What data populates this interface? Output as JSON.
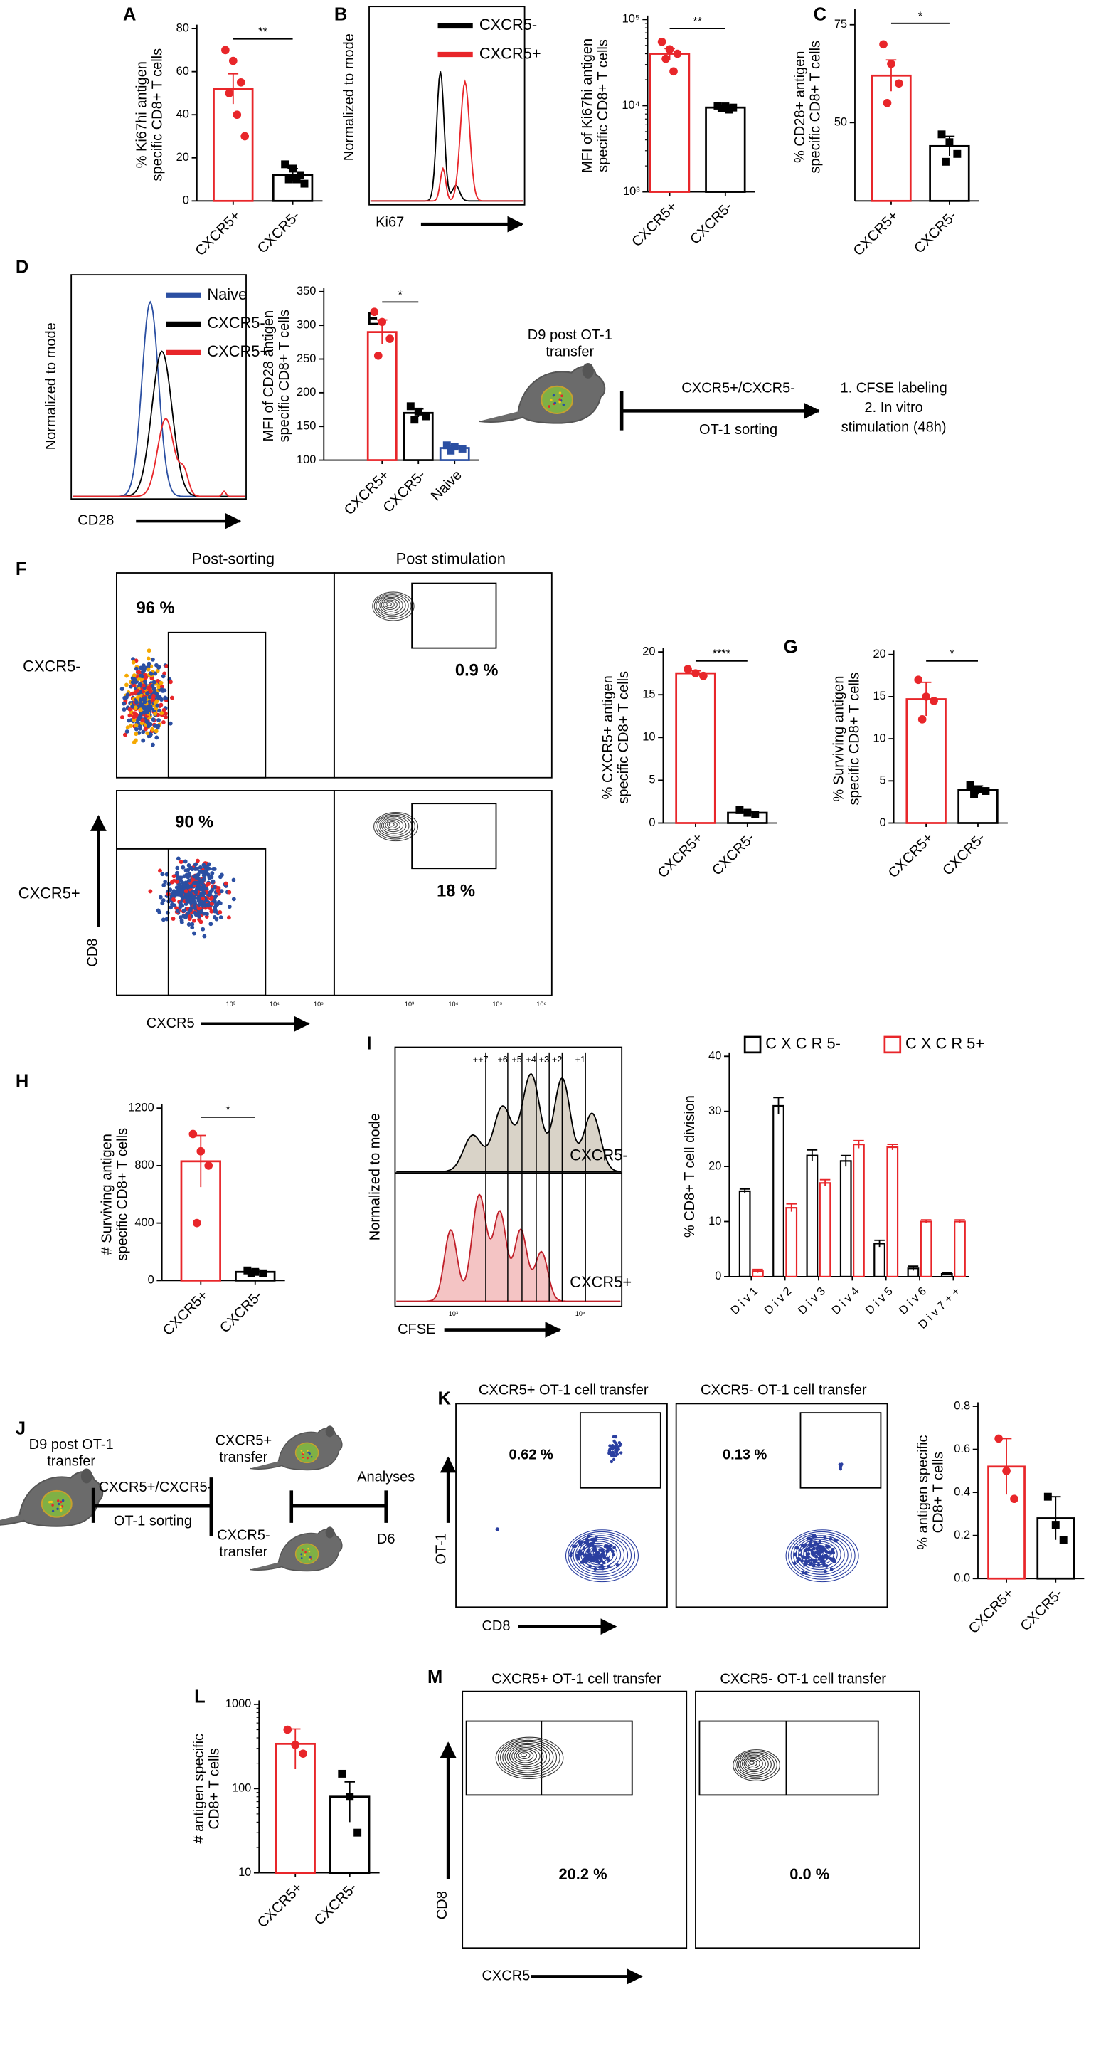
{
  "chart_data": [
    {
      "type": "bar",
      "ylabel": [
        "% Ki67hi antigen",
        "specific CD8+ T cells"
      ],
      "categories": [
        "CXCR5+",
        "CXCR5-"
      ],
      "values": [
        52,
        12
      ],
      "errors": [
        7,
        3
      ],
      "points": [
        [
          70,
          65,
          55,
          50,
          40,
          30
        ],
        [
          17,
          15,
          12,
          10,
          10,
          8
        ]
      ],
      "colors": [
        "#e8262a",
        "#000000"
      ],
      "ylim": [
        0,
        80
      ],
      "yticks": [
        0,
        20,
        40,
        60,
        80
      ],
      "significance": "**"
    },
    {
      "type": "bar",
      "ylabel": [
        "MFI of Ki67hi  antigen",
        "specific CD8+ T cells"
      ],
      "categories": [
        "CXCR5+",
        "CXCR5-"
      ],
      "values": [
        40000,
        9500
      ],
      "errors": [
        6000,
        400
      ],
      "points": [
        [
          55000,
          45000,
          40000,
          35000,
          25000
        ],
        [
          10000,
          9800,
          9500,
          9300,
          9000
        ]
      ],
      "colors": [
        "#e8262a",
        "#000000"
      ],
      "log": true,
      "ylim": [
        1000,
        100000
      ],
      "yticks": [
        {
          "value": 1000,
          "label": "10³"
        },
        {
          "value": 10000,
          "label": "10⁴"
        },
        {
          "value": 100000,
          "label": "10⁵"
        }
      ],
      "significance": "**"
    },
    {
      "type": "bar",
      "ylabel": [
        "% CD28+ antigen",
        "specific CD8+ T cells"
      ],
      "categories": [
        "CXCR5+",
        "CXCR5-"
      ],
      "values": [
        62,
        44
      ],
      "errors": [
        4,
        2.5
      ],
      "points": [
        [
          70,
          65,
          60,
          55
        ],
        [
          47,
          45,
          42,
          40
        ]
      ],
      "colors": [
        "#e8262a",
        "#000000"
      ],
      "ylim": [
        30,
        78
      ],
      "yticks": [
        50,
        75
      ],
      "significance": "*"
    },
    {
      "type": "bar",
      "ylabel": [
        "MFI of CD28 antigen",
        "specific CD8+ T cells"
      ],
      "categories": [
        "CXCR5+",
        "CXCR5-",
        "Naive"
      ],
      "values": [
        290,
        170,
        118
      ],
      "errors": [
        18,
        6,
        3
      ],
      "points": [
        [
          320,
          305,
          280,
          255
        ],
        [
          180,
          172,
          165,
          160
        ],
        [
          122,
          120,
          117,
          114
        ]
      ],
      "colors": [
        "#e8262a",
        "#000000",
        "#2b4fa2"
      ],
      "ylim": [
        100,
        350
      ],
      "yticks": [
        100,
        150,
        200,
        250,
        300,
        350
      ],
      "significance": "*"
    },
    {
      "type": "bar",
      "ylabel": [
        "% CXCR5+ antigen",
        "specific CD8+ T cells"
      ],
      "categories": [
        "CXCR5+",
        "CXCR5-"
      ],
      "values": [
        17.5,
        1.2
      ],
      "errors": [
        0.3,
        0.2
      ],
      "points": [
        [
          18,
          17.5,
          17.2
        ],
        [
          1.5,
          1.2,
          1
        ]
      ],
      "colors": [
        "#e8262a",
        "#000000"
      ],
      "ylim": [
        0,
        20
      ],
      "yticks": [
        0,
        5,
        10,
        15,
        20
      ],
      "significance": "****"
    },
    {
      "type": "bar",
      "ylabel": [
        "% Surviving antigen",
        "specific CD8+ T cells"
      ],
      "categories": [
        "CXCR5+",
        "CXCR5-"
      ],
      "values": [
        14.7,
        3.9
      ],
      "errors": [
        2,
        0.5
      ],
      "points": [
        [
          17,
          15,
          14.5,
          12.3
        ],
        [
          4.5,
          4,
          3.8,
          3.4
        ]
      ],
      "colors": [
        "#e8262a",
        "#000000"
      ],
      "ylim": [
        0,
        20
      ],
      "yticks": [
        0,
        5,
        10,
        15,
        20
      ],
      "significance": "*"
    },
    {
      "type": "bar",
      "ylabel": [
        "# Surviving antigen",
        "specific CD8+ T cells"
      ],
      "categories": [
        "CXCR5+",
        "CXCR5-"
      ],
      "values": [
        830,
        60
      ],
      "errors": [
        180,
        15
      ],
      "points": [
        [
          1020,
          900,
          800,
          400
        ],
        [
          70,
          60,
          50,
          50
        ]
      ],
      "colors": [
        "#e8262a",
        "#000000"
      ],
      "ylim": [
        0,
        1200
      ],
      "yticks": [
        0,
        400,
        800,
        1200
      ],
      "significance": "*"
    },
    {
      "type": "grouped-bar",
      "ylabel": [
        "% CD8+ T cell division"
      ],
      "categories": [
        "D i v  1",
        "D i v  2",
        "D i v  3",
        "D i v  4",
        "D i v  5",
        "D i v  6",
        "D i v  7 + +"
      ],
      "series": [
        {
          "name": "C X C R 5-",
          "color": "#000000",
          "values": [
            15.5,
            31,
            22,
            21,
            6,
            1.5,
            0.5
          ],
          "errors": [
            0.4,
            1.5,
            1,
            1,
            0.6,
            0.4,
            0.2
          ]
        },
        {
          "name": "C X C R 5+",
          "color": "#e8262a",
          "values": [
            1,
            12.5,
            17,
            24,
            23.5,
            10,
            10
          ],
          "errors": [
            0.3,
            0.7,
            0.6,
            0.7,
            0.5,
            0.3,
            0.3
          ]
        }
      ],
      "ylim": [
        0,
        40
      ],
      "yticks": [
        0,
        10,
        20,
        30,
        40
      ]
    },
    {
      "type": "bar",
      "ylabel": [
        "% antigen specific",
        "CD8+  T  cells"
      ],
      "categories": [
        "CXCR5+",
        "CXCR5-"
      ],
      "values": [
        0.52,
        0.28
      ],
      "errors": [
        0.13,
        0.1
      ],
      "points": [
        [
          0.65,
          0.5,
          0.37
        ],
        [
          0.38,
          0.25,
          0.18
        ]
      ],
      "colors": [
        "#e8262a",
        "#000000"
      ],
      "ylim": [
        0,
        0.8
      ],
      "yticks": [
        {
          "value": 0,
          "label": "0.0"
        },
        0.2,
        0.4,
        0.6,
        0.8
      ]
    },
    {
      "type": "bar",
      "ylabel": [
        "# antigen specific",
        "CD8+ T cells"
      ],
      "categories": [
        "CXCR5+",
        "CXCR5-"
      ],
      "values": [
        340,
        80
      ],
      "errors": [
        170,
        40
      ],
      "points": [
        [
          500,
          330,
          260
        ],
        [
          150,
          80,
          30
        ]
      ],
      "colors": [
        "#e8262a",
        "#000000"
      ],
      "log": true,
      "ylim": [
        10,
        1000
      ],
      "yticks": [
        10,
        100,
        1000
      ]
    }
  ],
  "figure": {
    "panel_letters": [
      "A",
      "B",
      "C",
      "D",
      "E",
      "F",
      "G",
      "H",
      "I",
      "J",
      "K",
      "L",
      "M"
    ],
    "b_hist": {
      "legend": [
        "CXCR5-",
        "CXCR5+"
      ],
      "ylabel": "Normalized to mode",
      "xlabel": "Ki67"
    },
    "d_hist": {
      "legend": [
        "Naive",
        "CXCR5-",
        "CXCR5+"
      ],
      "ylabel": "Normalized to mode",
      "xlabel": "CD28"
    },
    "e": {
      "top": [
        "D9 post OT-1",
        "transfer"
      ],
      "above": "CXCR5+/CXCR5-",
      "below": "OT-1 sorting",
      "result": [
        "1. CFSE labeling",
        "2. In vitro",
        "stimulation (48h)"
      ]
    },
    "f": {
      "columns": [
        "Post-sorting",
        "Post stimulation"
      ],
      "rows": [
        "CXCR5-",
        "CXCR5+"
      ],
      "gates": [
        "96 %",
        "0.9 %",
        "90 %",
        "18 %"
      ],
      "ylabel": "CD8",
      "xlabel": "CXCR5",
      "xticks": [
        "10³",
        "10⁴",
        "10⁵",
        "10⁶"
      ]
    },
    "i_hist": {
      "divisions": [
        "++7",
        "+6",
        "+5",
        "+4",
        "+3",
        "+2",
        "+1"
      ],
      "rows": [
        "CXCR5-",
        "CXCR5+"
      ],
      "ylabel": "Normalized to mode",
      "xlabel": "CFSE",
      "xticks": [
        "10³",
        "10⁴"
      ]
    },
    "j": {
      "top": [
        "D9 post OT-1",
        "transfer"
      ],
      "above": "CXCR5+/CXCR5-",
      "below": "OT-1 sorting",
      "groups": [
        [
          "CXCR5+",
          "transfer"
        ],
        [
          "CXCR5-",
          "transfer"
        ]
      ],
      "analysis": "Analyses",
      "day": "D6"
    },
    "k": {
      "titles": [
        "CXCR5+ OT-1 cell transfer",
        "CXCR5- OT-1 cell transfer"
      ],
      "gates": [
        "0.62 %",
        "0.13 %"
      ],
      "ylabel": "OT-1",
      "xlabel": "CD8"
    },
    "m": {
      "titles": [
        "CXCR5+ OT-1 cell transfer",
        "CXCR5- OT-1 cell transfer"
      ],
      "gates": [
        "20.2 %",
        "0.0 %"
      ],
      "ylabel": "CD8",
      "xlabel": "CXCR5"
    }
  }
}
